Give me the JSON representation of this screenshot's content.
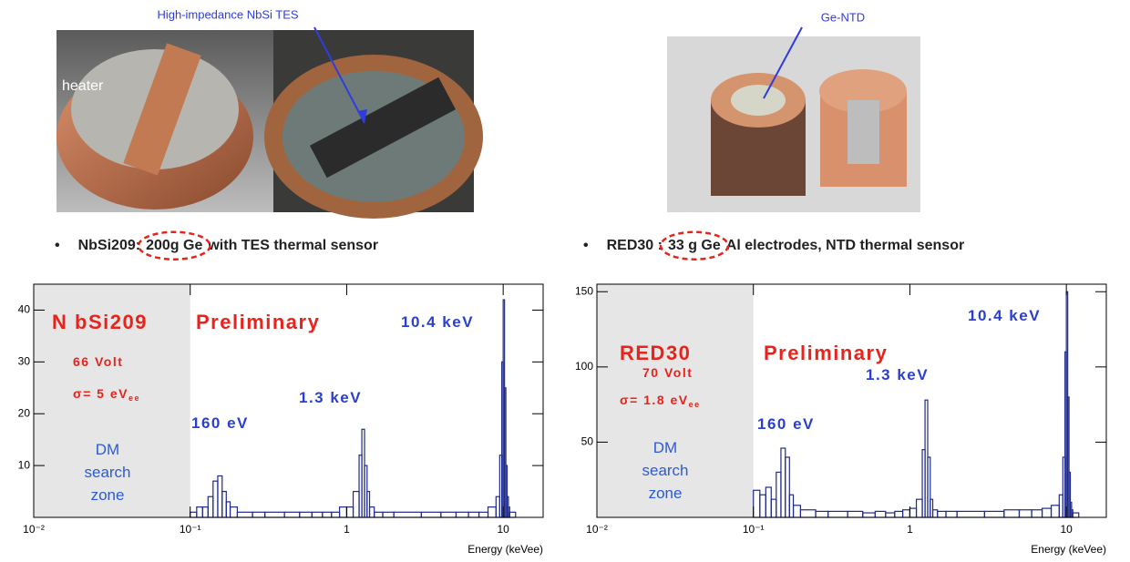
{
  "photos": {
    "tes_label": "High-impedance NbSi TES",
    "heater_label": "heater",
    "ntd_label": "Ge-NTD"
  },
  "headers": [
    {
      "bullet": "•",
      "before": "NbSi209:",
      "circled": "200g Ge",
      "after": "with TES thermal sensor"
    },
    {
      "bullet": "•",
      "before": "RED30 :",
      "circled": "33 g Ge",
      "after": "Al electrodes, NTD thermal sensor"
    }
  ],
  "chart_data": [
    {
      "type": "histogram",
      "xlabel": "Energy (keVee)",
      "xscale": "log",
      "color": "#1f2a8a",
      "shade_color": "#e6e6e6",
      "shade": [
        0.01,
        0.1
      ],
      "xlim": [
        0.01,
        18
      ],
      "ylim": [
        0,
        45
      ],
      "xticks": [
        {
          "value": 0.01,
          "label": "10⁻²"
        },
        {
          "value": 0.1,
          "label": "10⁻¹"
        },
        1,
        10
      ],
      "yticks": [
        10,
        20,
        30,
        40
      ],
      "bins": [
        0.1,
        0.11,
        0.12,
        0.13,
        0.14,
        0.15,
        0.16,
        0.17,
        0.18,
        0.2,
        0.25,
        0.3,
        0.4,
        0.5,
        0.6,
        0.7,
        0.8,
        0.9,
        1,
        1.1,
        1.2,
        1.25,
        1.3,
        1.35,
        1.4,
        1.5,
        1.7,
        2,
        3,
        4,
        5,
        6,
        7,
        8,
        9,
        9.5,
        9.8,
        10,
        10.2,
        10.4,
        10.6,
        10.8,
        11,
        12
      ],
      "values": [
        1,
        2,
        2,
        4,
        7,
        8,
        5,
        3,
        2,
        1,
        1,
        1,
        1,
        1,
        1,
        1,
        1,
        2,
        2,
        5,
        12,
        17,
        10,
        5,
        2,
        1,
        1,
        1,
        1,
        1,
        1,
        1,
        1,
        2,
        4,
        12,
        30,
        42,
        25,
        10,
        4,
        2,
        1
      ],
      "annotations": [
        {
          "text": "N bSi209",
          "color": "#e8231c"
        },
        {
          "text": "Preliminary",
          "color": "#e8231c"
        },
        {
          "text": "66 Volt",
          "color": "#e8231c"
        },
        {
          "text": "σ= 5 eV",
          "subscript": "ee",
          "color": "#e8231c"
        },
        {
          "text": "DM",
          "color": "#2a5bd7"
        },
        {
          "text": "search",
          "color": "#2a5bd7"
        },
        {
          "text": "zone",
          "color": "#2a5bd7"
        },
        {
          "text": "160 eV",
          "color": "#2a3fd0"
        },
        {
          "text": "1.3 keV",
          "color": "#2a3fd0"
        },
        {
          "text": "10.4 keV",
          "color": "#2a3fd0"
        }
      ]
    },
    {
      "type": "histogram",
      "xlabel": "Energy (keVee)",
      "xscale": "log",
      "color": "#1f2a8a",
      "shade_color": "#e6e6e6",
      "shade": [
        0.01,
        0.1
      ],
      "xlim": [
        0.01,
        18
      ],
      "ylim": [
        0,
        155
      ],
      "xticks": [
        {
          "value": 0.01,
          "label": "10⁻²"
        },
        {
          "value": 0.1,
          "label": "10⁻¹"
        },
        1,
        10
      ],
      "yticks": [
        50,
        100,
        150
      ],
      "bins": [
        0.1,
        0.11,
        0.12,
        0.13,
        0.14,
        0.15,
        0.16,
        0.17,
        0.18,
        0.2,
        0.25,
        0.3,
        0.4,
        0.5,
        0.6,
        0.7,
        0.8,
        0.9,
        1,
        1.1,
        1.2,
        1.25,
        1.3,
        1.35,
        1.4,
        1.5,
        1.7,
        2,
        3,
        4,
        5,
        6,
        7,
        8,
        9,
        9.5,
        9.8,
        10,
        10.2,
        10.4,
        10.6,
        10.8,
        11,
        12
      ],
      "values": [
        18,
        15,
        20,
        12,
        30,
        46,
        40,
        15,
        8,
        5,
        4,
        4,
        4,
        3,
        4,
        3,
        4,
        5,
        6,
        12,
        45,
        78,
        40,
        12,
        5,
        4,
        4,
        4,
        4,
        5,
        5,
        5,
        6,
        8,
        15,
        40,
        110,
        150,
        80,
        30,
        10,
        5,
        3
      ],
      "annotations": [
        {
          "text": "RED30",
          "color": "#e8231c"
        },
        {
          "text": "Preliminary",
          "color": "#e8231c"
        },
        {
          "text": "70 Volt",
          "color": "#e8231c"
        },
        {
          "text": "σ= 1.8 eV",
          "subscript": "ee",
          "color": "#e8231c"
        },
        {
          "text": "DM",
          "color": "#2a5bd7"
        },
        {
          "text": "search",
          "color": "#2a5bd7"
        },
        {
          "text": "zone",
          "color": "#2a5bd7"
        },
        {
          "text": "160 eV",
          "color": "#2a3fd0"
        },
        {
          "text": "1.3 keV",
          "color": "#2a3fd0"
        },
        {
          "text": "10.4 keV",
          "color": "#2a3fd0"
        }
      ]
    }
  ]
}
